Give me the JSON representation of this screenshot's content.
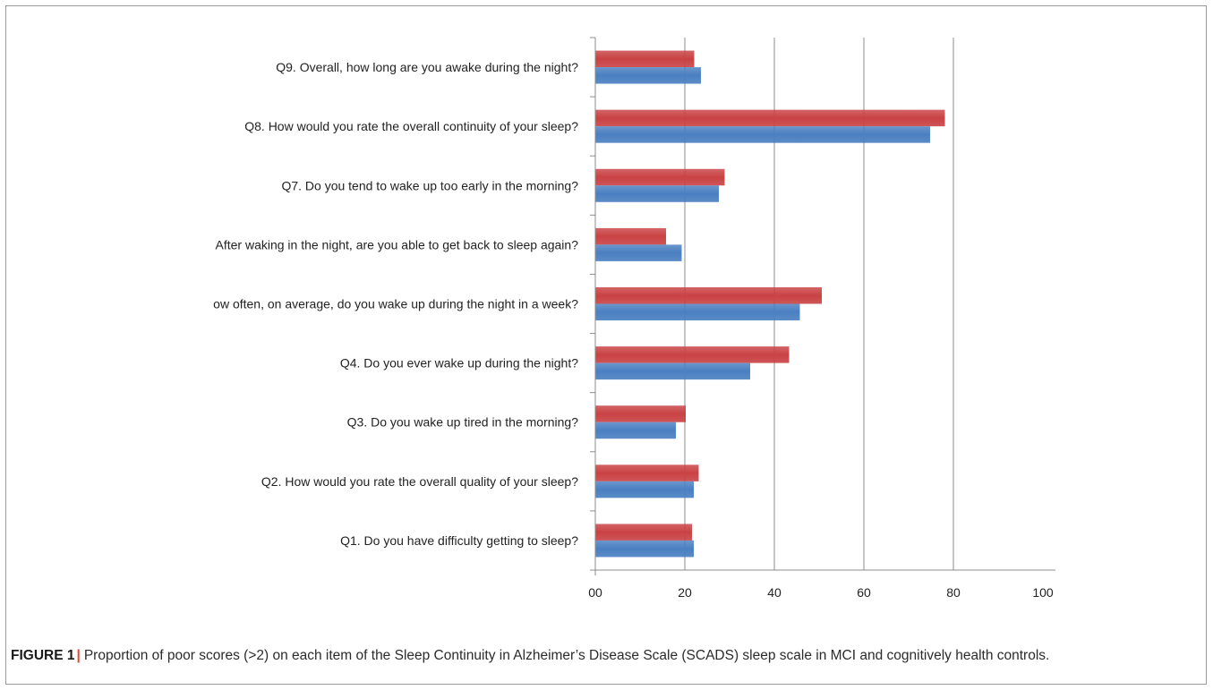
{
  "chart_data": {
    "type": "bar",
    "orientation": "horizontal",
    "categories": [
      "Q1. Do you have difficulty getting to sleep?",
      "Q2. How would you rate the overall quality of your sleep?",
      "Q3. Do you wake up tired in the morning?",
      "Q4. Do you ever wake up during the night?",
      "ow often, on average, do you wake up during the night in a week?",
      "After waking in the night, are you able to get back to sleep again?",
      "Q7. Do you tend to wake up too early in the morning?",
      "Q8. How would you rate the overall continuity of your sleep?",
      "Q9. Overall, how long are you awake during the night?"
    ],
    "series": [
      {
        "color": "#c94244",
        "values": [
          21.6,
          23.1,
          20.2,
          43.3,
          50.6,
          15.8,
          28.9,
          78.1,
          22.1
        ]
      },
      {
        "color": "#4a7fc1",
        "values": [
          22.0,
          22.0,
          18.0,
          34.6,
          45.7,
          19.3,
          27.6,
          74.8,
          23.6
        ]
      }
    ],
    "x_ticks": [
      "00",
      "20",
      "40",
      "60",
      "80",
      "100"
    ],
    "xlim": [
      0,
      100
    ],
    "grid": "vertical gridlines",
    "legend": "none"
  },
  "caption": {
    "label": "FIGURE 1",
    "separator": "|",
    "text": "Proportion of poor scores (>2) on each item of the Sleep Continuity in Alzheimer’s Disease Scale (SCADS) sleep scale in MCI and cognitively health controls."
  }
}
